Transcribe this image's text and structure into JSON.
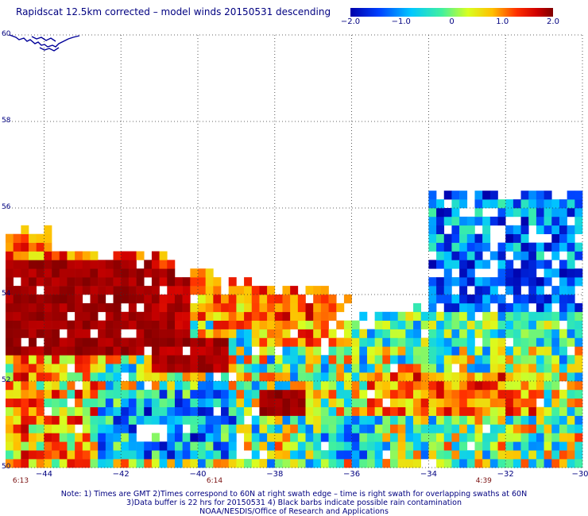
{
  "title": "Rapidscat 12.5km corrected – model winds 20150531 descending",
  "colorbar": {
    "ticks": [
      "−2.0",
      "−1.0",
      "0",
      "1.0",
      "2.0"
    ],
    "tick_values": [
      -2,
      -1,
      0,
      1,
      2
    ],
    "range": [
      -2,
      2
    ],
    "colors": [
      "#0000aa",
      "#0044ff",
      "#00c8ff",
      "#40f0a0",
      "#d8ff20",
      "#ffc000",
      "#ff4000",
      "#d00000",
      "#800000"
    ]
  },
  "axes": {
    "lon_range": [
      -45,
      -30
    ],
    "lat_range": [
      50,
      60
    ],
    "x_ticks": [
      "−44",
      "−42",
      "−40",
      "−38",
      "−36",
      "−34",
      "−32",
      "−30"
    ],
    "x_tick_values": [
      -44,
      -42,
      -40,
      -38,
      -36,
      -34,
      -32,
      -30
    ],
    "y_ticks": [
      "60",
      "58",
      "56",
      "54",
      "52",
      "50"
    ],
    "y_tick_values": [
      60,
      58,
      56,
      54,
      52,
      50
    ],
    "grid": true
  },
  "time_labels": [
    {
      "text": "6:13",
      "lon": -45
    },
    {
      "text": "6:14",
      "lon": -40
    },
    {
      "text": "4:39",
      "lon": -33
    }
  ],
  "notes": [
    "Note: 1) Times are GMT 2)Times correspond to 60N at right swath edge – time is right swath for overlapping swaths at 60N",
    "3)Data buffer is 22 hrs for 20150531 4) Black barbs indicate possible rain contamination",
    "NOAA/NESDIS/Office of Research and Applications"
  ],
  "chart_data": {
    "type": "heatmap",
    "title": "Rapidscat 12.5km corrected – model winds 20150531 descending",
    "x_axis": "longitude",
    "y_axis": "latitude",
    "xlim": [
      -45,
      -30
    ],
    "ylim": [
      50,
      60
    ],
    "value_range": [
      -2,
      2
    ],
    "regions": [
      {
        "lon": [
          -45,
          -30
        ],
        "lat": [
          50,
          51.5
        ],
        "mean": 0.2
      },
      {
        "lon": [
          -45,
          -41
        ],
        "lat": [
          52.6,
          54.8
        ],
        "mean": 2.0
      },
      {
        "lon": [
          -41,
          -39.2
        ],
        "lat": [
          52.2,
          53
        ],
        "mean": 2.0
      },
      {
        "lon": [
          -38.4,
          -37.1
        ],
        "lat": [
          51.2,
          51.9
        ],
        "mean": 2.0
      },
      {
        "lon": [
          -34,
          -30
        ],
        "lat": [
          53.5,
          56.4
        ],
        "mean": -1.8
      },
      {
        "lon": [
          -36,
          -30
        ],
        "lat": [
          51.8,
          53.2
        ],
        "mean": 0.6
      }
    ]
  }
}
